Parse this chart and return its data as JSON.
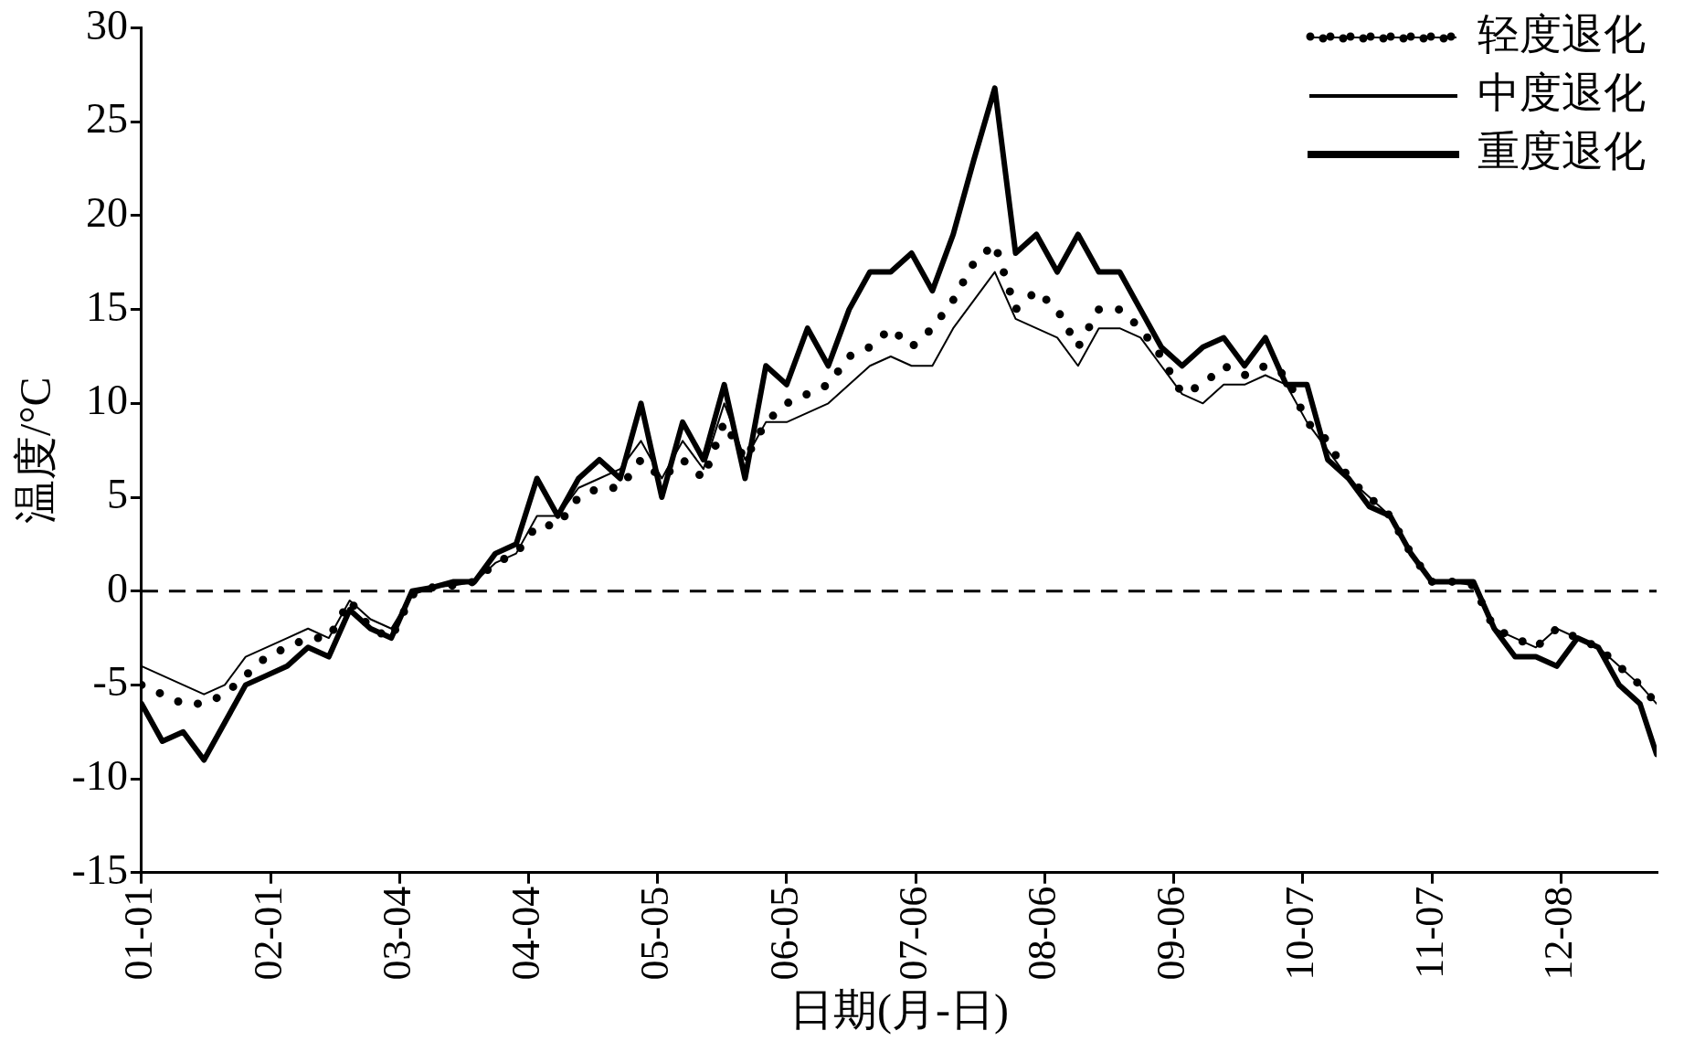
{
  "chart_data": {
    "type": "line",
    "xlabel": "日期(月-日)",
    "ylabel": "温度/°C",
    "x": [
      "--01-01",
      "--01-06",
      "--01-11",
      "--01-16",
      "--01-21",
      "--01-26",
      "--01-31",
      "--02-05",
      "--02-10",
      "--02-15",
      "--02-20",
      "--02-25",
      "--03-02",
      "--03-07",
      "--03-12",
      "--03-17",
      "--03-22",
      "--03-27",
      "--04-01",
      "--04-06",
      "--04-11",
      "--04-16",
      "--04-21",
      "--04-26",
      "--05-01",
      "--05-06",
      "--05-11",
      "--05-16",
      "--05-21",
      "--05-26",
      "--05-31",
      "--06-05",
      "--06-10",
      "--06-15",
      "--06-20",
      "--06-25",
      "--06-30",
      "--07-05",
      "--07-10",
      "--07-15",
      "--07-20",
      "--07-25",
      "--07-30",
      "--08-04",
      "--08-09",
      "--08-14",
      "--08-19",
      "--08-24",
      "--08-29",
      "--09-03",
      "--09-08",
      "--09-13",
      "--09-18",
      "--09-23",
      "--09-28",
      "--10-03",
      "--10-08",
      "--10-13",
      "--10-18",
      "--10-23",
      "--10-28",
      "--11-02",
      "--11-07",
      "--11-12",
      "--11-17",
      "--11-22",
      "--11-27",
      "--12-02",
      "--12-07",
      "--12-12",
      "--12-17",
      "--12-22",
      "--12-27",
      "--12-31"
    ],
    "series": [
      {
        "name": "轻度退化",
        "color": "#000000",
        "line_style": "dotted",
        "values": [
          -5,
          -5.5,
          -6,
          -6,
          -5.5,
          -4.5,
          -3.5,
          -3,
          -2.5,
          -2.5,
          -0.5,
          -2,
          -2.5,
          -0.2,
          0.2,
          0.3,
          0.5,
          1.5,
          2,
          3.5,
          3.5,
          5,
          5.5,
          5.5,
          7,
          6,
          7,
          6,
          9,
          7,
          9,
          10,
          10.5,
          11,
          12.5,
          13,
          14,
          13,
          14,
          15.5,
          17.5,
          18.5,
          15,
          16,
          15,
          13,
          15,
          15,
          14,
          12.5,
          10.5,
          11,
          12,
          11.5,
          12,
          11.5,
          9,
          8,
          6,
          5,
          4,
          2,
          0.5,
          0.5,
          0.3,
          -2,
          -2.5,
          -3,
          -2,
          -2.5,
          -3,
          -4,
          -5,
          -6
        ]
      },
      {
        "name": "中度退化",
        "color": "#000000",
        "line_style": "solid",
        "values": [
          -4,
          -4.5,
          -5,
          -5.5,
          -5,
          -3.5,
          -3,
          -2.5,
          -2,
          -2.5,
          -0.5,
          -1.5,
          -2,
          -0.2,
          0.2,
          0.3,
          0.5,
          1.5,
          2,
          4,
          4,
          5.5,
          6,
          6.5,
          8,
          6,
          8,
          6.5,
          10,
          7,
          9,
          9,
          9.5,
          10,
          11,
          12,
          12.5,
          12,
          12,
          14,
          15.5,
          17,
          14.5,
          14,
          13.5,
          12,
          14,
          14,
          13.5,
          12,
          10.5,
          10,
          11,
          11,
          11.5,
          11,
          9,
          7.5,
          6,
          5,
          4,
          2,
          0.5,
          0.5,
          0.3,
          -2,
          -2.5,
          -3,
          -2,
          -2.5,
          -3,
          -4,
          -5,
          -6
        ]
      },
      {
        "name": "重度退化",
        "color": "#000000",
        "line_style": "solid",
        "values": [
          -6,
          -8,
          -7.5,
          -9,
          -7,
          -5,
          -4.5,
          -4,
          -3,
          -3.5,
          -1,
          -2,
          -2.5,
          0,
          0.2,
          0.5,
          0.5,
          2,
          2.5,
          6,
          4,
          6,
          7,
          6,
          10,
          5,
          9,
          7,
          11,
          6,
          12,
          11,
          14,
          12,
          15,
          17,
          17,
          18,
          16,
          19,
          23,
          26.8,
          18,
          19,
          17,
          19,
          17,
          17,
          15,
          13,
          12,
          13,
          13.5,
          12,
          13.5,
          11,
          11,
          7,
          6,
          4.5,
          4,
          2,
          0.5,
          0.5,
          0.5,
          -2,
          -3.5,
          -3.5,
          -4,
          -2.5,
          -3,
          -5,
          -6,
          -8.7
        ]
      }
    ],
    "xlim": [
      "--01-01",
      "--12-31"
    ],
    "xticks": [
      {
        "value": "--01-01",
        "label": "01-01"
      },
      {
        "value": "--02-01",
        "label": "02-01"
      },
      {
        "value": "--03-04",
        "label": "03-04"
      },
      {
        "value": "--04-04",
        "label": "04-04"
      },
      {
        "value": "--05-05",
        "label": "05-05"
      },
      {
        "value": "--06-05",
        "label": "06-05"
      },
      {
        "value": "--07-06",
        "label": "07-06"
      },
      {
        "value": "--08-06",
        "label": "08-06"
      },
      {
        "value": "--09-06",
        "label": "09-06"
      },
      {
        "value": "--10-07",
        "label": "10-07"
      },
      {
        "value": "--11-07",
        "label": "11-07"
      },
      {
        "value": "--12-08",
        "label": "12-08"
      }
    ],
    "ylim": [
      -15,
      30
    ],
    "yticks": [
      -15,
      -10,
      -5,
      0,
      5,
      10,
      15,
      20,
      25,
      30
    ],
    "ref_lines": [
      {
        "axis": "y",
        "value": 0,
        "line_style": "dashed",
        "color": "#000000"
      }
    ],
    "grid": false,
    "legend": "top right",
    "marker": "none"
  }
}
